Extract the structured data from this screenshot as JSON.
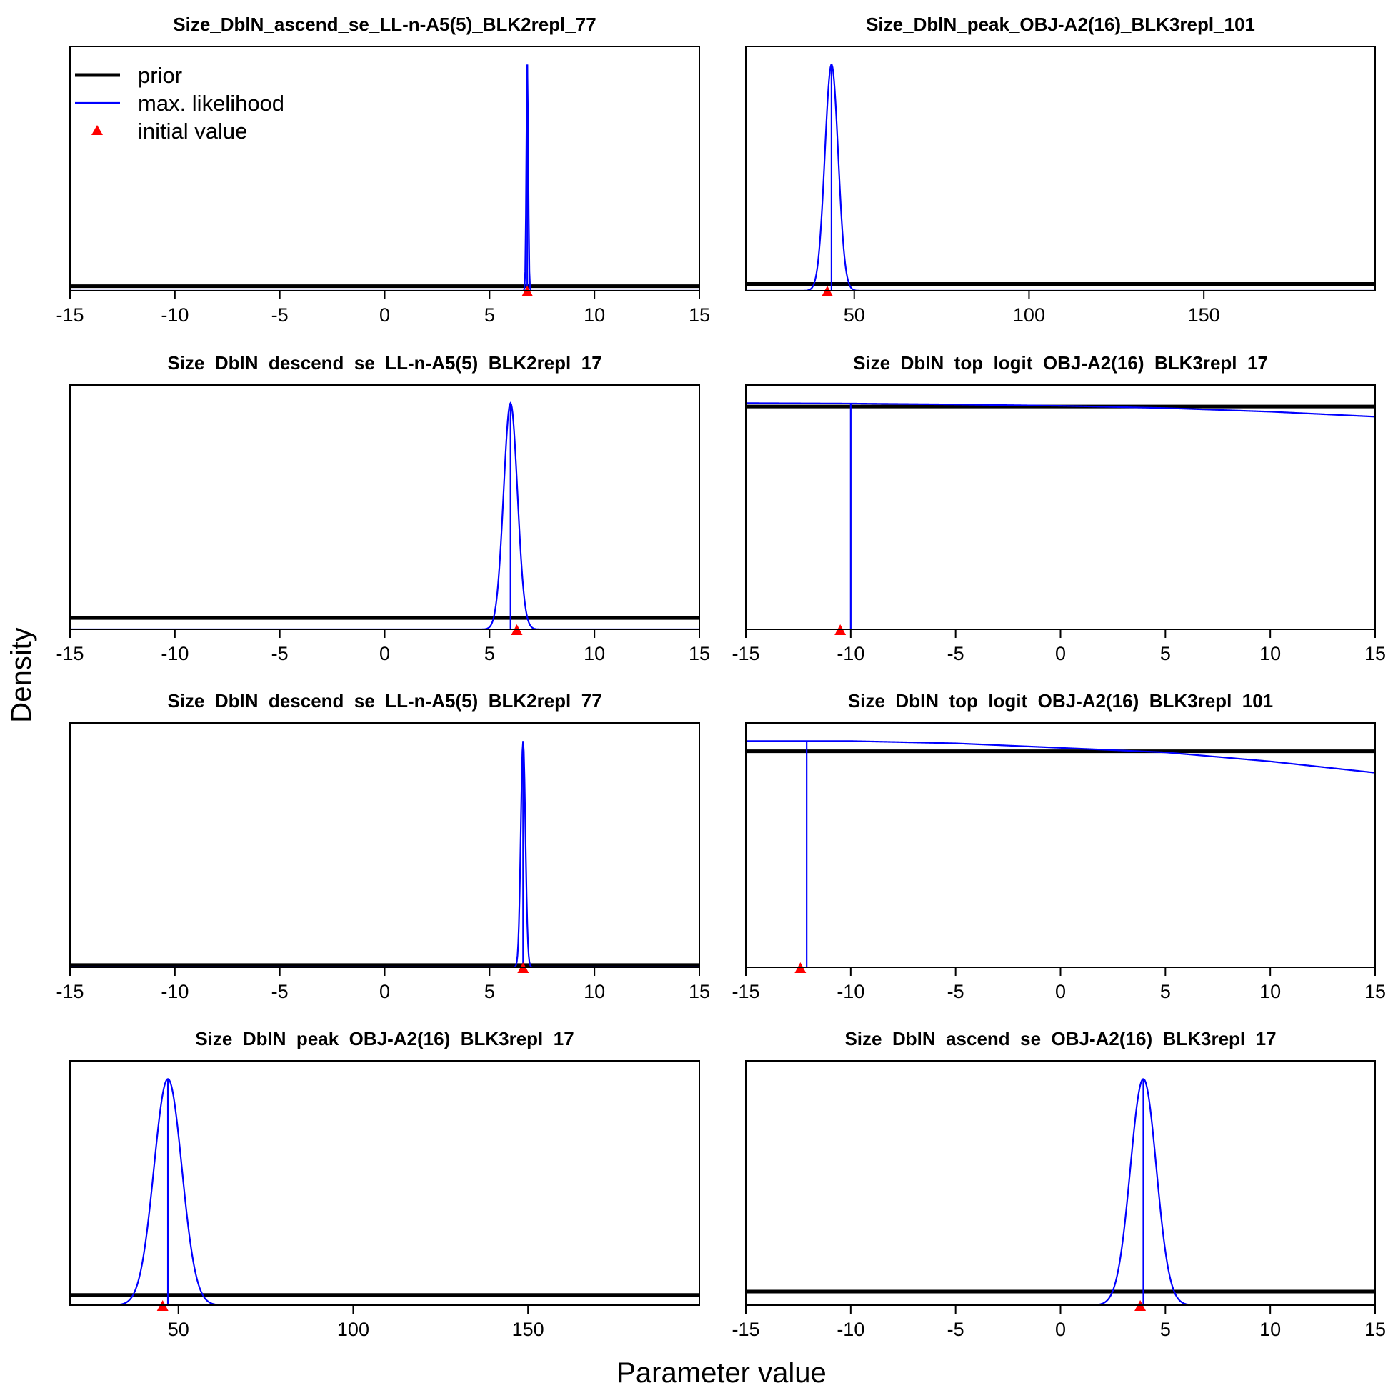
{
  "figure": {
    "xlabel": "Parameter value",
    "ylabel": "Density",
    "legend": {
      "placement": "top-left of first panel",
      "entries": [
        {
          "label": "prior",
          "kind": "line",
          "color": "#000000"
        },
        {
          "label": "max. likelihood",
          "kind": "line",
          "color": "#0000ff"
        },
        {
          "label": "initial value",
          "kind": "triangle",
          "color": "#ff0000"
        }
      ]
    }
  },
  "colors": {
    "prior": "#000000",
    "mle": "#0000ff",
    "initial": "#ff0000"
  },
  "chart_data": [
    {
      "type": "line",
      "title": "Size_DblN_ascend_se_LL-n-A5(5)_BLK2repl_77",
      "xlim": [
        -15,
        15
      ],
      "xticks": [
        -15,
        -10,
        -5,
        0,
        5,
        10,
        15
      ],
      "ylim": [
        0,
        1.08
      ],
      "prior_level": 0.02,
      "mle": {
        "kind": "normal",
        "mean": 6.8,
        "sd": 0.045,
        "peak": 1.0
      },
      "mle_marker": 6.8,
      "initial_value": 6.8
    },
    {
      "type": "line",
      "title": "Size_DblN_peak_OBJ-A2(16)_BLK3repl_101",
      "xlim": [
        19,
        199
      ],
      "xticks": [
        50,
        100,
        150
      ],
      "ylim": [
        0,
        1.08
      ],
      "prior_level": 0.03,
      "mle": {
        "kind": "normal",
        "mean": 43.5,
        "sd": 1.9,
        "peak": 1.0
      },
      "mle_marker": 43.5,
      "initial_value": 42.3
    },
    {
      "type": "line",
      "title": "Size_DblN_descend_se_LL-n-A5(5)_BLK2repl_17",
      "xlim": [
        -15,
        15
      ],
      "xticks": [
        -15,
        -10,
        -5,
        0,
        5,
        10,
        15
      ],
      "ylim": [
        0,
        1.08
      ],
      "prior_level": 0.05,
      "mle": {
        "kind": "normal",
        "mean": 6.0,
        "sd": 0.33,
        "peak": 1.0
      },
      "mle_marker": 6.0,
      "initial_value": 6.3
    },
    {
      "type": "line",
      "title": "Size_DblN_top_logit_OBJ-A2(16)_BLK3repl_17",
      "xlim": [
        -15,
        15
      ],
      "xticks": [
        -15,
        -10,
        -5,
        0,
        5,
        10,
        15
      ],
      "ylim": [
        0,
        1.08
      ],
      "prior_level": 0.985,
      "mle": {
        "kind": "sampled",
        "x": [
          -15,
          -10,
          -5,
          0,
          5,
          10,
          15
        ],
        "y": [
          1.0,
          0.998,
          0.994,
          0.988,
          0.978,
          0.962,
          0.94
        ]
      },
      "mle_marker": -10.0,
      "initial_value": -10.5
    },
    {
      "type": "line",
      "title": "Size_DblN_descend_se_LL-n-A5(5)_BLK2repl_77",
      "xlim": [
        -15,
        15
      ],
      "xticks": [
        -15,
        -10,
        -5,
        0,
        5,
        10,
        15
      ],
      "ylim": [
        0,
        1.08
      ],
      "prior_level": 0.01,
      "mle": {
        "kind": "normal",
        "mean": 6.6,
        "sd": 0.11,
        "peak": 1.0
      },
      "mle_marker": 6.6,
      "initial_value": 6.6
    },
    {
      "type": "line",
      "title": "Size_DblN_top_logit_OBJ-A2(16)_BLK3repl_101",
      "xlim": [
        -15,
        15
      ],
      "xticks": [
        -15,
        -10,
        -5,
        0,
        5,
        10,
        15
      ],
      "ylim": [
        0,
        1.08
      ],
      "prior_level": 0.955,
      "mle": {
        "kind": "sampled",
        "x": [
          -15,
          -10,
          -5,
          0,
          5,
          10,
          15
        ],
        "y": [
          1.0,
          1.0,
          0.99,
          0.97,
          0.95,
          0.91,
          0.86
        ]
      },
      "mle_marker": -12.1,
      "initial_value": -12.4
    },
    {
      "type": "line",
      "title": "Size_DblN_peak_OBJ-A2(16)_BLK3repl_17",
      "xlim": [
        19,
        199
      ],
      "xticks": [
        50,
        100,
        150
      ],
      "ylim": [
        0,
        1.08
      ],
      "prior_level": 0.045,
      "mle": {
        "kind": "normal",
        "mean": 47.0,
        "sd": 4.0,
        "peak": 1.0
      },
      "mle_marker": 47.0,
      "initial_value": 45.5
    },
    {
      "type": "line",
      "title": "Size_DblN_ascend_se_OBJ-A2(16)_BLK3repl_17",
      "xlim": [
        -15,
        15
      ],
      "xticks": [
        -15,
        -10,
        -5,
        0,
        5,
        10,
        15
      ],
      "ylim": [
        0,
        1.08
      ],
      "prior_level": 0.06,
      "mle": {
        "kind": "normal",
        "mean": 3.95,
        "sd": 0.62,
        "peak": 1.0
      },
      "mle_marker": 3.95,
      "initial_value": 3.8
    }
  ]
}
